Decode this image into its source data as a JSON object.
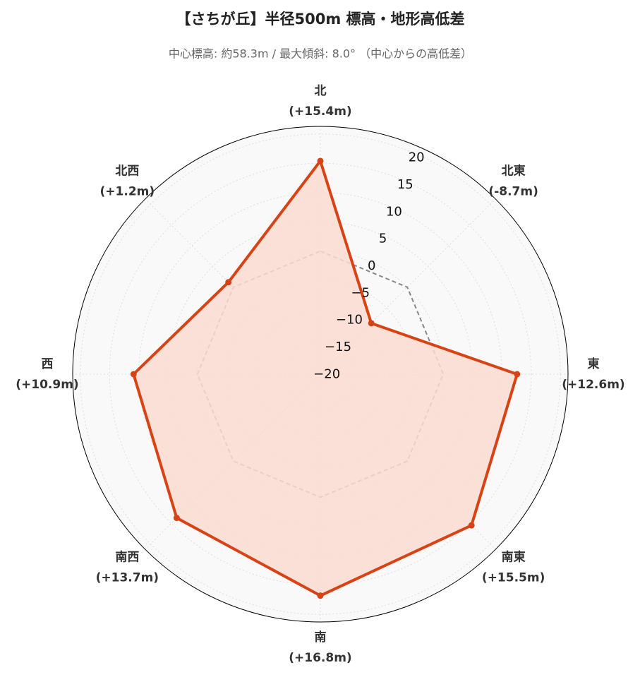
{
  "chart_data": {
    "type": "radar",
    "title": "【さちが丘】半径500m 標高・地形高低差",
    "subtitle": "中心標高: 約58.3m / 最大傾斜: 8.0° （中心からの高低差）",
    "categories": [
      "北",
      "北東",
      "東",
      "南東",
      "南",
      "南西",
      "西",
      "北西"
    ],
    "values": [
      15.4,
      -8.7,
      12.6,
      15.5,
      16.8,
      13.7,
      10.9,
      1.2
    ],
    "value_labels": [
      "(+15.4m)",
      "(-8.7m)",
      "(+12.6m)",
      "(+15.5m)",
      "(+16.8m)",
      "(+13.7m)",
      "(+10.9m)",
      "(+1.2m)"
    ],
    "color": "#d84315",
    "fill_color": "#fbdcd2",
    "baseline": 0,
    "ylim": [
      -21,
      21.3
    ],
    "yticks": [
      {
        "value": -20,
        "label": "−20"
      },
      {
        "value": -15,
        "label": "−15"
      },
      {
        "value": -10,
        "label": "−10"
      },
      {
        "value": -5,
        "label": "−5"
      },
      0,
      5,
      10,
      15,
      20
    ],
    "grid": true
  }
}
